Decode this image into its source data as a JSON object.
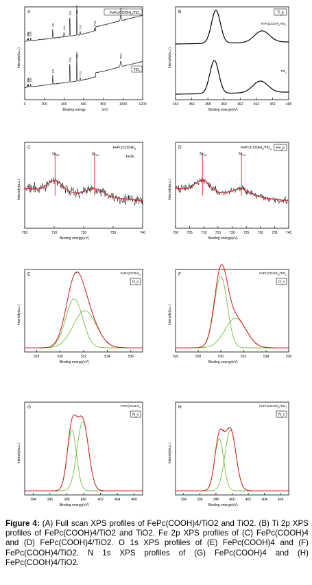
{
  "colors": {
    "raw": "#000000",
    "fit_envelope": "#e02020",
    "fit_component": "#6cbf3a",
    "marker": "#e02020"
  },
  "caption": {
    "label": "Figure 4:",
    "text": "(A) Full scan XPS profiles of FePc(COOH)4/TiO2 and TiO2. (B) Ti 2p XPS profiles of FePc(COOH)4/TiO2 and TiO2. Fe 2p XPS profiles of (C) FePc(COOH)4 and (D) FePc(COOH)4/TiO2. O 1s XPS profiles of (E) FePc(COOH)4 and (F) FePc(COOH)4/TiO2. N 1s XPS profiles of (G) FePc(COOH)4 and (H) FePc(COOH)4/TiO2."
  },
  "chart_data": [
    {
      "panel": "A",
      "type": "line",
      "sample": "FePc(COOH)4/TiO2",
      "xlabel": "Binding energy",
      "xunit": "(eV)",
      "ylabel": "Intensity(a.u.)",
      "xlim": [
        0,
        1200
      ],
      "xticks": [
        0,
        200,
        400,
        600,
        800,
        1000,
        1200
      ],
      "series": [
        {
          "name": "FePc(COOH)4/TiO2",
          "peaks": [
            {
              "x": 30,
              "label": "O2s"
            },
            {
              "x": 38,
              "label": "Ti3p"
            },
            {
              "x": 60,
              "label": "Ti3s"
            },
            {
              "x": 285,
              "label": "C1s"
            },
            {
              "x": 400,
              "label": "N1s"
            },
            {
              "x": 459,
              "label": "Ti2p"
            },
            {
              "x": 530,
              "label": "O1s"
            },
            {
              "x": 565,
              "label": "Ti2s"
            },
            {
              "x": 710,
              "label": "Fe2p"
            },
            {
              "x": 978,
              "label": "OKLL"
            }
          ]
        },
        {
          "name": "TiO2",
          "peaks": [
            {
              "x": 30,
              "label": "O2s"
            },
            {
              "x": 38,
              "label": "Ti3p"
            },
            {
              "x": 60,
              "label": "Ti3s"
            },
            {
              "x": 285,
              "label": "C1s"
            },
            {
              "x": 459,
              "label": "Ti2p"
            },
            {
              "x": 530,
              "label": "O1s"
            },
            {
              "x": 565,
              "label": "Ti2s"
            },
            {
              "x": 978,
              "label": "OKLL"
            }
          ]
        }
      ]
    },
    {
      "panel": "B",
      "type": "line",
      "element": "Ti2p",
      "xlabel": "Binding energy(eV)",
      "ylabel": "Intensity(a.u.)",
      "xlim": [
        454,
        468
      ],
      "xticks": [
        454,
        456,
        458,
        460,
        462,
        464,
        466,
        468
      ],
      "series": [
        {
          "name": "FePc(COOH)4/TiO2",
          "peaks": [
            {
              "x": 459.0,
              "height": 1.0
            },
            {
              "x": 464.7,
              "height": 0.35
            }
          ]
        },
        {
          "name": "TiO2",
          "peaks": [
            {
              "x": 458.8,
              "height": 1.0
            },
            {
              "x": 464.5,
              "height": 0.35
            }
          ]
        }
      ]
    },
    {
      "panel": "C",
      "type": "line",
      "sample": "FePc(COOH)4",
      "element": "Fe2p",
      "xlabel": "Binding energy(eV)",
      "ylabel": "Intensity(a.u.)",
      "xlim": [
        700,
        740
      ],
      "xticks": [
        700,
        710,
        720,
        730,
        740
      ],
      "markers": [
        {
          "x": 710.3,
          "label": "2p3/2"
        },
        {
          "x": 723.7,
          "label": "2p1/2"
        }
      ],
      "fit_peaks": [
        {
          "x": 710.3
        },
        {
          "x": 723.7
        }
      ]
    },
    {
      "panel": "D",
      "type": "line",
      "sample": "FePc(COOH)4/TiO2",
      "element": "Fe2p",
      "xlabel": "Binding energy(eV)",
      "ylabel": "Intensity(a.u.)",
      "xlim": [
        700,
        740
      ],
      "xticks": [
        700,
        705,
        710,
        715,
        720,
        725,
        730,
        735,
        740
      ],
      "markers": [
        {
          "x": 709.5,
          "label": "2p3/2"
        },
        {
          "x": 723.3,
          "label": "2p1/2"
        }
      ],
      "fit_peaks": [
        {
          "x": 709.5
        },
        {
          "x": 723.3
        }
      ]
    },
    {
      "panel": "E",
      "type": "line",
      "sample": "FePc(COOH)4",
      "element": "O1s",
      "xlabel": "Binding energy(eV)",
      "ylabel": "Intensity(a.u.)",
      "xlim": [
        527,
        537
      ],
      "xticks": [
        528,
        530,
        532,
        534,
        536
      ],
      "components": [
        {
          "center": 531.2,
          "height": 0.66,
          "fwhm": 1.7
        },
        {
          "center": 532.1,
          "height": 0.5,
          "fwhm": 2.3
        }
      ]
    },
    {
      "panel": "F",
      "type": "line",
      "sample": "FePc(COOH)4/TiO2",
      "element": "O1s",
      "xlabel": "Binding energy(eV)",
      "ylabel": "Intensity(a.u.)",
      "xlim": [
        526,
        536
      ],
      "xticks": [
        526,
        528,
        530,
        532,
        534,
        536
      ],
      "components": [
        {
          "center": 530.0,
          "height": 0.96,
          "fwhm": 1.35
        },
        {
          "center": 531.3,
          "height": 0.4,
          "fwhm": 2.2
        }
      ]
    },
    {
      "panel": "G",
      "type": "line",
      "sample": "FePc(COOH)4",
      "element": "N1s",
      "xlabel": "Binding energy(eV)",
      "ylabel": "Intensity(a.u.)",
      "xlim": [
        393,
        407
      ],
      "xticks": [
        394,
        396,
        398,
        400,
        402,
        404,
        406
      ],
      "components": [
        {
          "center": 398.6,
          "height": 0.72,
          "fwhm": 1.3
        },
        {
          "center": 399.9,
          "height": 0.82,
          "fwhm": 1.6
        }
      ]
    },
    {
      "panel": "H",
      "type": "line",
      "sample": "FePc(COOH)4/TiO2",
      "element": "N1s",
      "xlabel": "Binding energy(eV)",
      "ylabel": "Intensity(a.u.)",
      "xlim": [
        393,
        407
      ],
      "xticks": [
        394,
        396,
        398,
        400,
        402,
        404,
        406
      ],
      "components": [
        {
          "center": 398.4,
          "height": 0.62,
          "fwhm": 1.3
        },
        {
          "center": 399.8,
          "height": 0.72,
          "fwhm": 1.6
        }
      ]
    }
  ]
}
